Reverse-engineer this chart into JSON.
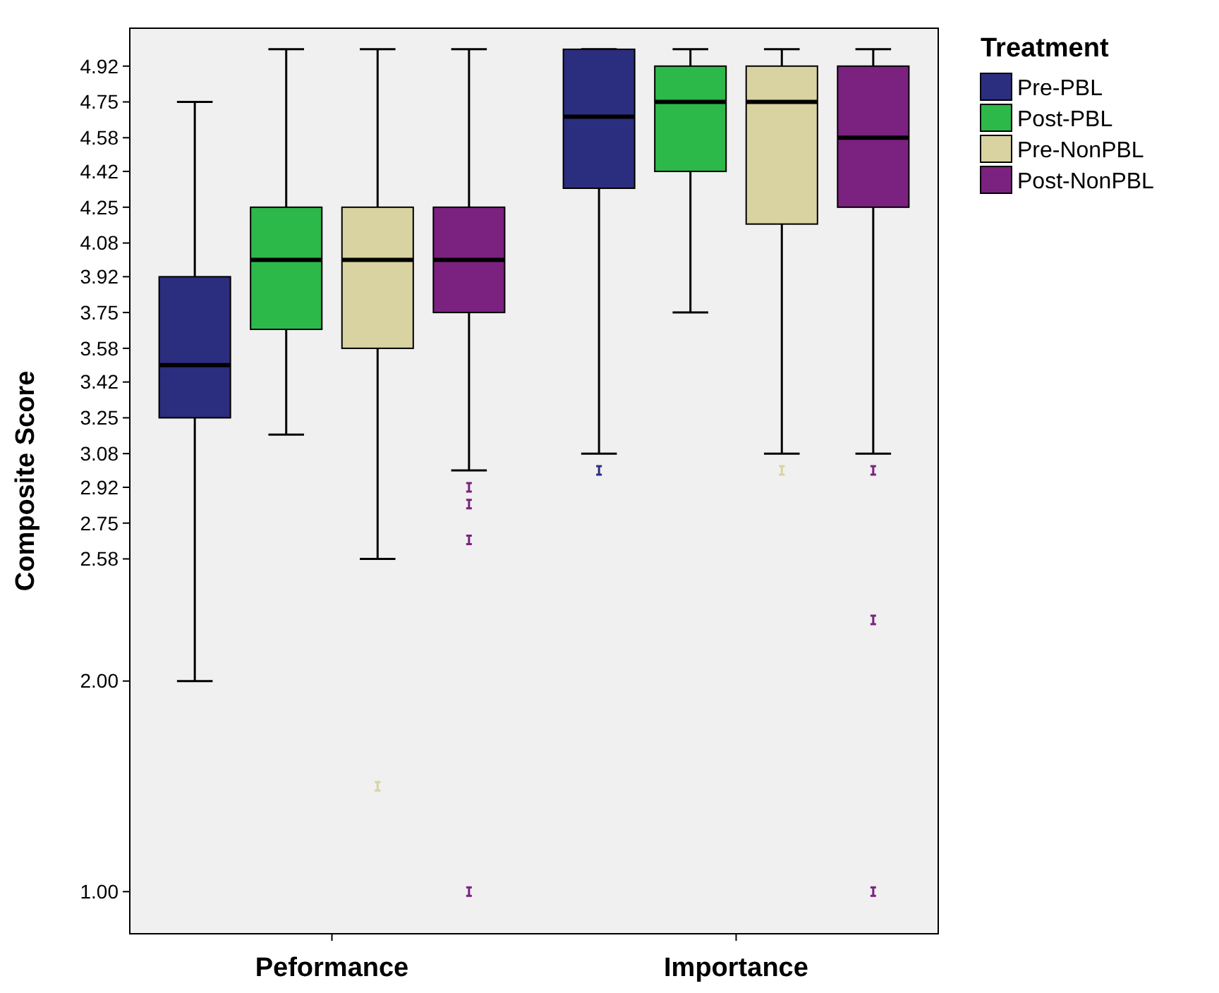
{
  "chart_data": {
    "type": "box",
    "ylabel": "Composite Score",
    "legend_title": "Treatment",
    "legend": "top right",
    "grid": false,
    "categories": [
      "Peformance",
      "Importance"
    ],
    "ylim": [
      0.8,
      5.1
    ],
    "yticks": [
      {
        "value": 1,
        "label": "1.00"
      },
      {
        "value": 2,
        "label": "2.00"
      },
      2.58,
      2.75,
      2.92,
      3.08,
      3.25,
      3.42,
      3.58,
      3.75,
      3.92,
      4.08,
      4.25,
      4.42,
      4.58,
      4.75,
      4.92
    ],
    "series": [
      {
        "name": "Pre-PBL",
        "color": "#2b2d7e",
        "boxes": [
          {
            "low": 2.0,
            "q1": 3.25,
            "median": 3.5,
            "q3": 3.92,
            "high": 4.75
          },
          {
            "low": 3.08,
            "q1": 4.34,
            "median": 4.68,
            "q3": 5.0,
            "high": 5.0,
            "outliers": [
              3.0
            ]
          }
        ]
      },
      {
        "name": "Post-PBL",
        "color": "#2db84a",
        "boxes": [
          {
            "low": 3.17,
            "q1": 3.67,
            "median": 4.0,
            "q3": 4.25,
            "high": 5.0
          },
          {
            "low": 3.75,
            "q1": 4.42,
            "median": 4.75,
            "q3": 4.92,
            "high": 5.0
          }
        ]
      },
      {
        "name": "Pre-NonPBL",
        "color": "#d8d3a0",
        "boxes": [
          {
            "low": 2.58,
            "q1": 3.58,
            "median": 4.0,
            "q3": 4.25,
            "high": 5.0,
            "outliers": [
              1.5
            ]
          },
          {
            "low": 3.08,
            "q1": 4.17,
            "median": 4.75,
            "q3": 4.92,
            "high": 5.0,
            "outliers": [
              3.0
            ]
          }
        ]
      },
      {
        "name": "Post-NonPBL",
        "color": "#7b2180",
        "boxes": [
          {
            "low": 3.0,
            "q1": 3.75,
            "median": 4.0,
            "q3": 4.25,
            "high": 5.0,
            "outliers": [
              2.92,
              2.84,
              2.67,
              1.0
            ]
          },
          {
            "low": 3.08,
            "q1": 4.25,
            "median": 4.58,
            "q3": 4.92,
            "high": 5.0,
            "outliers": [
              3.0,
              2.29,
              1.0
            ]
          }
        ]
      }
    ]
  }
}
